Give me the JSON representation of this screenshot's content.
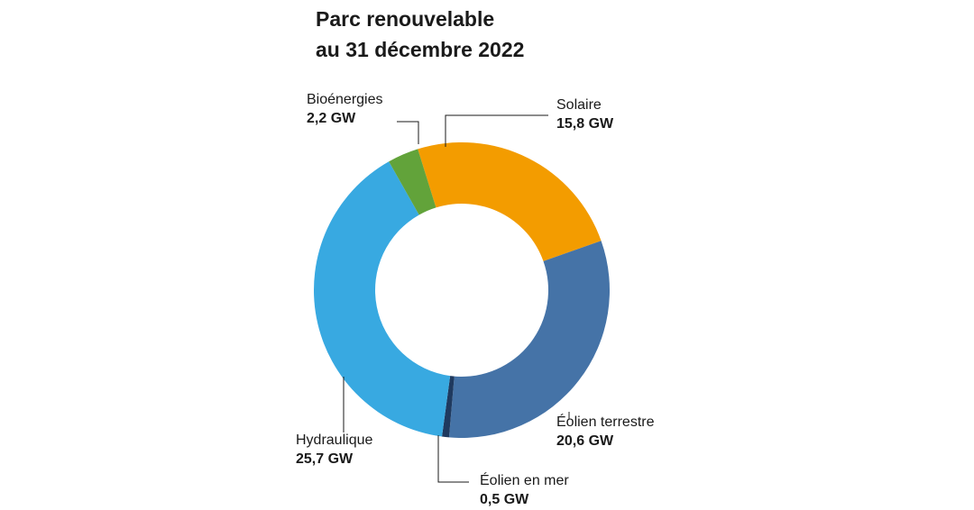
{
  "chart_data": {
    "type": "pie",
    "title_line1": "Parc renouvelable",
    "title_line2": "au 31 décembre 2022",
    "unit": "GW",
    "categories": [
      "Solaire",
      "Éolien terrestre",
      "Éolien en mer",
      "Hydraulique",
      "Bioénergies"
    ],
    "values": [
      15.8,
      20.6,
      0.5,
      25.7,
      2.2
    ],
    "value_labels": [
      "15,8 GW",
      "20,6 GW",
      "0,5 GW",
      "25,7 GW",
      "2,2 GW"
    ],
    "colors": [
      "#F39C00",
      "#4573A7",
      "#1F3A5F",
      "#38A9E1",
      "#62A33A"
    ],
    "donut": true
  }
}
